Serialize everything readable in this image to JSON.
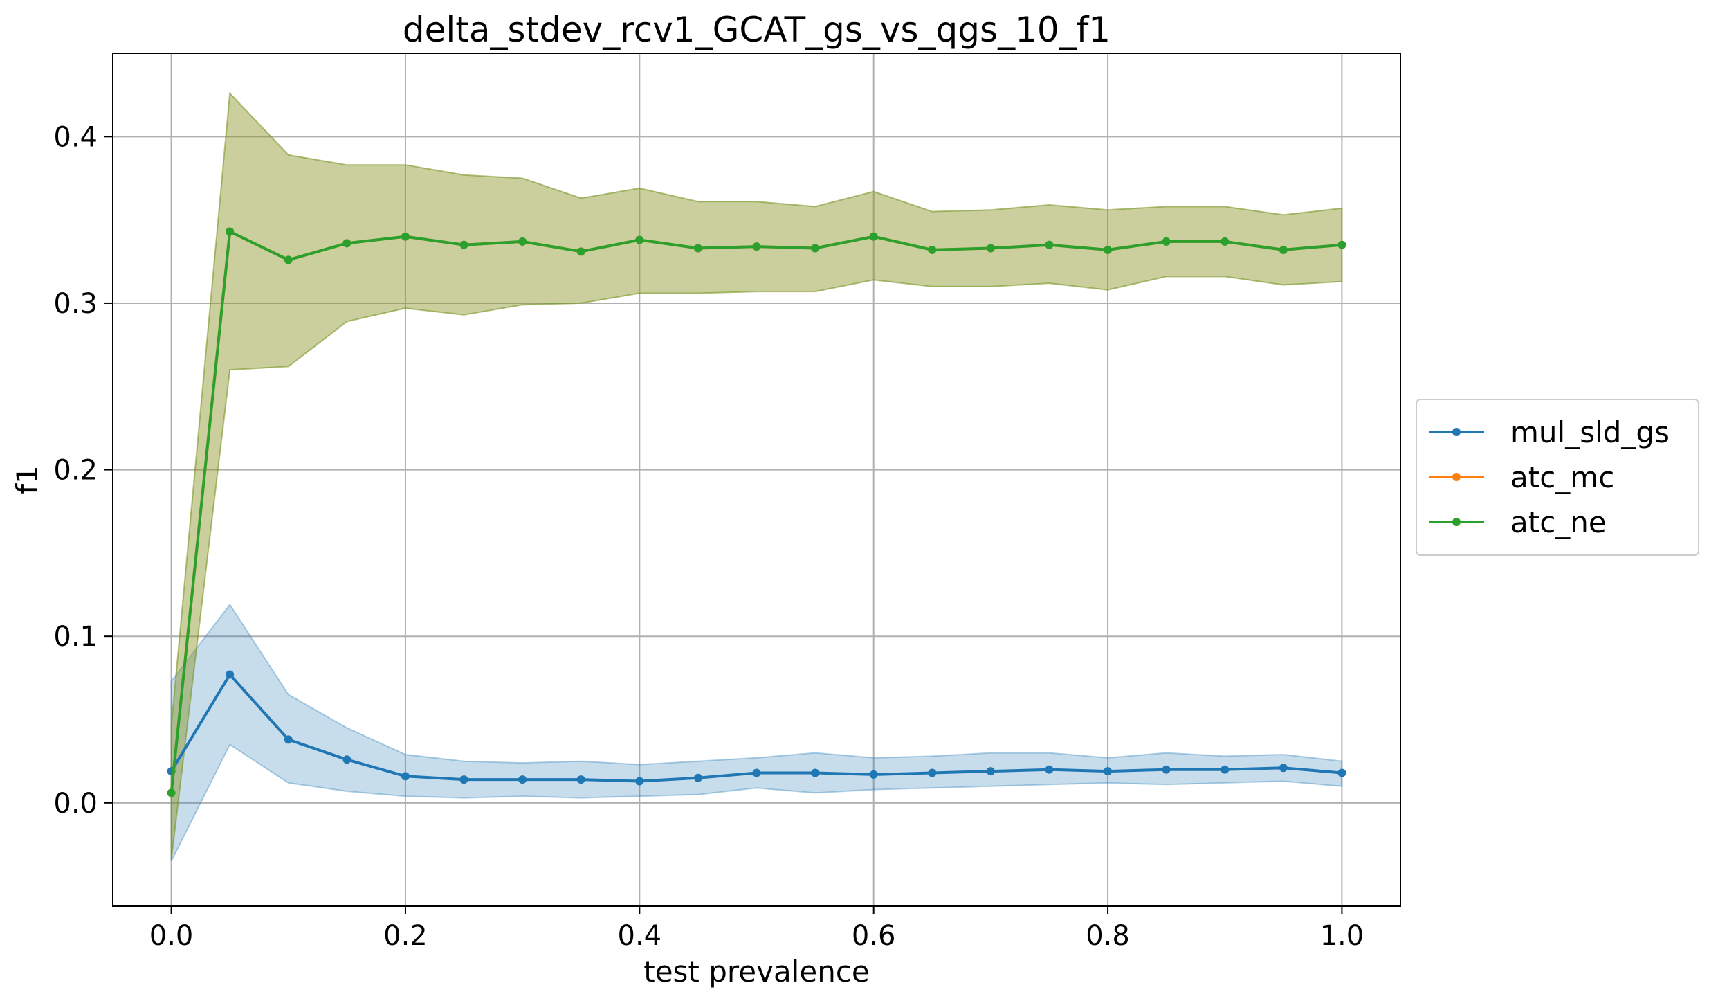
{
  "chart_data": {
    "type": "line",
    "title": "delta_stdev_rcv1_GCAT_gs_vs_qgs_10_f1",
    "xlabel": "test prevalence",
    "ylabel": "f1",
    "xlim": [
      -0.05,
      1.05
    ],
    "ylim": [
      -0.062,
      0.45
    ],
    "xticks": [
      0.0,
      0.2,
      0.4,
      0.6,
      0.8,
      1.0
    ],
    "xtick_labels": [
      "0.0",
      "0.2",
      "0.4",
      "0.6",
      "0.8",
      "1.0"
    ],
    "yticks": [
      0.0,
      0.1,
      0.2,
      0.3,
      0.4
    ],
    "ytick_labels": [
      "0.0",
      "0.1",
      "0.2",
      "0.3",
      "0.4"
    ],
    "grid": true,
    "legend_position": "outside-right",
    "x": [
      0.0,
      0.05,
      0.1,
      0.15,
      0.2,
      0.25,
      0.3,
      0.35,
      0.4,
      0.45,
      0.5,
      0.55,
      0.6,
      0.65,
      0.7,
      0.75,
      0.8,
      0.85,
      0.9,
      0.95,
      1.0
    ],
    "series": [
      {
        "name": "mul_sld_gs",
        "color": "#1f77b4",
        "band_color": "#1f77b4",
        "values": [
          0.019,
          0.077,
          0.038,
          0.026,
          0.016,
          0.014,
          0.014,
          0.014,
          0.013,
          0.015,
          0.018,
          0.018,
          0.017,
          0.018,
          0.019,
          0.02,
          0.019,
          0.02,
          0.02,
          0.021,
          0.018
        ],
        "upper": [
          0.073,
          0.119,
          0.065,
          0.045,
          0.029,
          0.025,
          0.024,
          0.025,
          0.023,
          0.025,
          0.027,
          0.03,
          0.027,
          0.028,
          0.03,
          0.03,
          0.027,
          0.03,
          0.028,
          0.029,
          0.025
        ],
        "lower": [
          -0.035,
          0.035,
          0.012,
          0.007,
          0.004,
          0.003,
          0.004,
          0.003,
          0.004,
          0.005,
          0.009,
          0.006,
          0.008,
          0.009,
          0.01,
          0.011,
          0.012,
          0.011,
          0.012,
          0.013,
          0.01
        ]
      },
      {
        "name": "atc_mc",
        "color": "#ff7f0e",
        "band_color": "#ff7f0e",
        "values": [
          0.006,
          0.343,
          0.326,
          0.336,
          0.34,
          0.335,
          0.337,
          0.331,
          0.338,
          0.333,
          0.334,
          0.333,
          0.34,
          0.332,
          0.333,
          0.335,
          0.332,
          0.337,
          0.337,
          0.332,
          0.335
        ],
        "upper": [
          0.046,
          0.426,
          0.389,
          0.383,
          0.383,
          0.377,
          0.375,
          0.363,
          0.369,
          0.361,
          0.361,
          0.358,
          0.367,
          0.355,
          0.356,
          0.359,
          0.356,
          0.358,
          0.358,
          0.353,
          0.357
        ],
        "lower": [
          -0.034,
          0.26,
          0.262,
          0.289,
          0.297,
          0.293,
          0.299,
          0.3,
          0.306,
          0.306,
          0.307,
          0.307,
          0.314,
          0.31,
          0.31,
          0.312,
          0.308,
          0.316,
          0.316,
          0.311,
          0.313
        ]
      },
      {
        "name": "atc_ne",
        "color": "#2ca02c",
        "band_color": "#2ca02c",
        "values": [
          0.006,
          0.343,
          0.326,
          0.336,
          0.34,
          0.335,
          0.337,
          0.331,
          0.338,
          0.333,
          0.334,
          0.333,
          0.34,
          0.332,
          0.333,
          0.335,
          0.332,
          0.337,
          0.337,
          0.332,
          0.335
        ],
        "upper": [
          0.046,
          0.426,
          0.389,
          0.383,
          0.383,
          0.377,
          0.375,
          0.363,
          0.369,
          0.361,
          0.361,
          0.358,
          0.367,
          0.355,
          0.356,
          0.359,
          0.356,
          0.358,
          0.358,
          0.353,
          0.357
        ],
        "lower": [
          -0.034,
          0.26,
          0.262,
          0.289,
          0.297,
          0.293,
          0.299,
          0.3,
          0.306,
          0.306,
          0.307,
          0.307,
          0.314,
          0.31,
          0.31,
          0.312,
          0.308,
          0.316,
          0.316,
          0.311,
          0.313
        ]
      }
    ]
  }
}
